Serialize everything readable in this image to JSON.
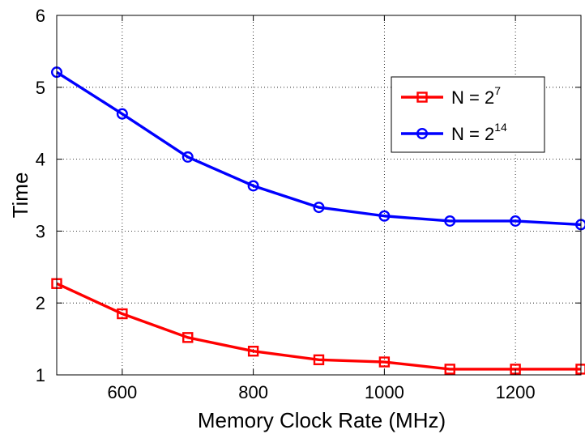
{
  "chart_data": {
    "type": "line",
    "title": "",
    "xlabel": "Memory Clock Rate (MHz)",
    "ylabel": "Time",
    "xlim": [
      500,
      1300
    ],
    "ylim": [
      1,
      6
    ],
    "xticks": [
      600,
      800,
      1000,
      1200
    ],
    "yticks": [
      1,
      2,
      3,
      4,
      5,
      6
    ],
    "grid": true,
    "grid_style": "dotted",
    "legend_position": "top-right",
    "x": [
      500,
      600,
      700,
      800,
      900,
      1000,
      1100,
      1200,
      1300
    ],
    "series": [
      {
        "name_base": "N = 2",
        "name_exp": "7",
        "color": "#ff0000",
        "marker": "square",
        "values": [
          2.27,
          1.85,
          1.52,
          1.33,
          1.21,
          1.18,
          1.08,
          1.08,
          1.08
        ]
      },
      {
        "name_base": "N = 2",
        "name_exp": "14",
        "color": "#0000ff",
        "marker": "circle",
        "values": [
          5.21,
          4.63,
          4.03,
          3.63,
          3.33,
          3.21,
          3.14,
          3.14,
          3.09
        ]
      }
    ]
  }
}
